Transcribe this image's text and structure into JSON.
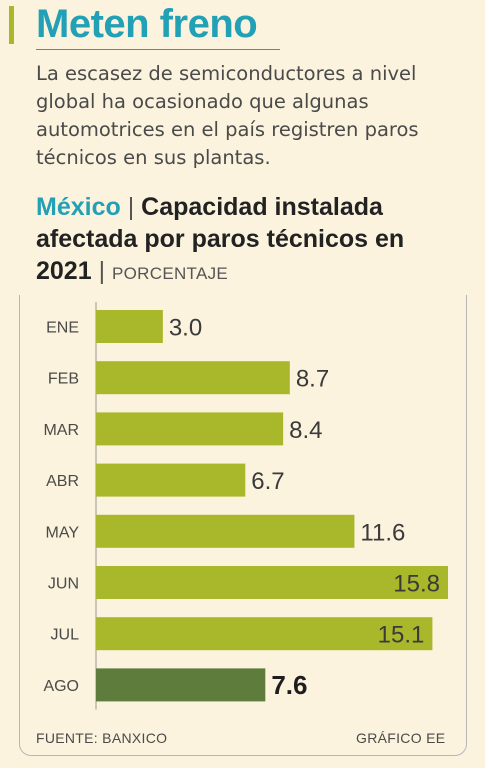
{
  "header": {
    "title": "Meten freno",
    "intro": "La escasez de semiconductores a nivel global ha ocasionado que algunas automotrices en el país registren paros técnicos en sus plantas."
  },
  "chart_data": {
    "type": "bar",
    "orientation": "horizontal",
    "title_country": "México",
    "title": "Capacidad instalada afectada por paros técnicos en 2021",
    "unit": "PORCENTAJE",
    "categories": [
      "ENE",
      "FEB",
      "MAR",
      "ABR",
      "MAY",
      "JUN",
      "JUL",
      "AGO"
    ],
    "values": [
      3.0,
      8.7,
      8.4,
      6.7,
      11.6,
      15.8,
      15.1,
      7.6
    ],
    "value_labels": [
      "3.0",
      "8.7",
      "8.4",
      "6.7",
      "11.6",
      "15.8",
      "15.1",
      "7.6"
    ],
    "highlight_index": 7,
    "colors": {
      "bar": "#a9b72a",
      "highlight": "#5e7c3c",
      "accent": "#21a0b6",
      "background": "#fbf3dd"
    },
    "xlim": [
      0,
      15.8
    ],
    "grid": false
  },
  "footer": {
    "source": "FUENTE: BANXICO",
    "credit": "GRÁFICO EE"
  }
}
